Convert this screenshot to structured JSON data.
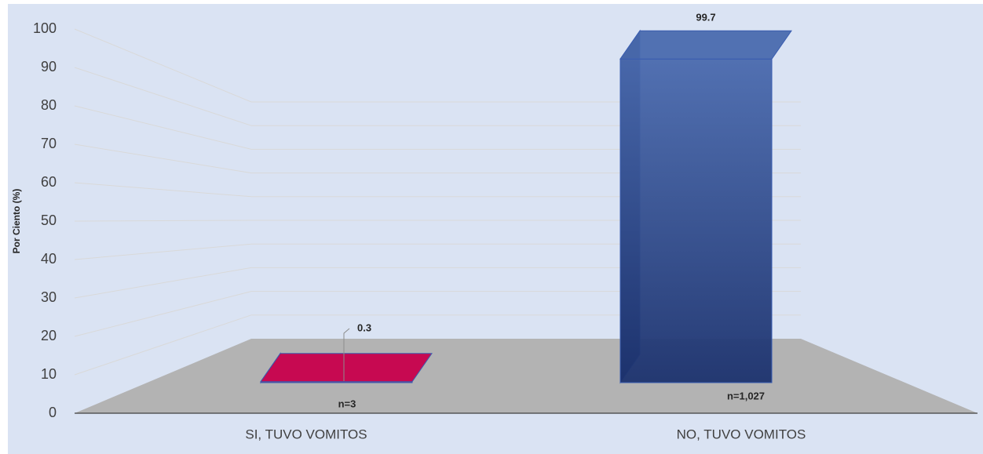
{
  "chart_data": {
    "type": "bar3d",
    "ylabel": "Por Ciento (%)",
    "categories": [
      "SI, TUVO VOMITOS",
      "NO, TUVO VOMITOS"
    ],
    "series": [
      {
        "name": null,
        "colors": [
          "#c8004c",
          "#2e4a94"
        ],
        "values": [
          0.3,
          99.7
        ],
        "value_labels": [
          "0.3",
          "99.7"
        ]
      }
    ],
    "sample_labels": [
      "n=3",
      "n=1,027"
    ],
    "ylim": [
      0,
      100
    ],
    "yticks": [
      0,
      10,
      20,
      30,
      40,
      50,
      60,
      70,
      80,
      90,
      100
    ],
    "grid": true
  }
}
